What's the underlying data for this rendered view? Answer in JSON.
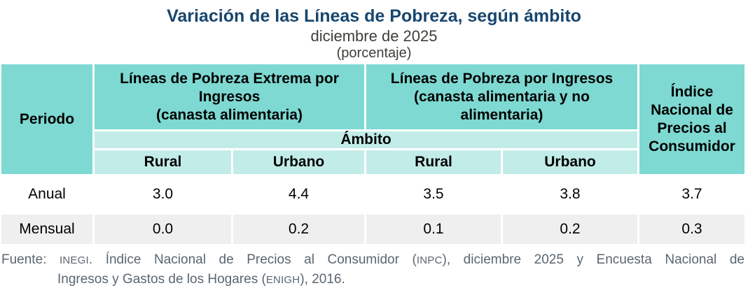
{
  "page": {
    "title": "Variación de las Líneas de Pobreza, según ámbito",
    "subtitle": "diciembre de 2025",
    "unit_note": "(porcentaje)"
  },
  "table": {
    "period_header": "Periodo",
    "groups": [
      {
        "line1": "Líneas de Pobreza Extrema por Ingresos",
        "line2": "(canasta alimentaria)"
      },
      {
        "line1": "Líneas de Pobreza por Ingresos",
        "line2": "(canasta alimentaria y no alimentaria)"
      }
    ],
    "inpc_header": "Índice Nacional de Precios al Consumidor",
    "ambito_header": "Ámbito",
    "scope_headers": [
      "Rural",
      "Urbano",
      "Rural",
      "Urbano"
    ],
    "rows": [
      {
        "label": "Anual",
        "values": [
          "3.0",
          "4.4",
          "3.5",
          "3.8",
          "3.7"
        ]
      },
      {
        "label": "Mensual",
        "values": [
          "0.0",
          "0.2",
          "0.1",
          "0.2",
          "0.3"
        ]
      }
    ]
  },
  "footer": {
    "label": "Fuente: ",
    "acronym_inegi": "INEGI",
    "line1_mid": ". Índice Nacional de Precios al Consumidor (",
    "acronym_inpc": "INPC",
    "line1_end": "), diciembre 2025 y Encuesta Nacional de",
    "line2_start": "Ingresos y Gastos de los Hogares (",
    "acronym_enigh": "ENIGH",
    "line2_end": "), 2016."
  },
  "colors": {
    "header_teal": "#7ED9D2",
    "subheader_teal": "#C2ECE8",
    "zebra_gray": "#EFEFEF",
    "title_blue": "#17466E",
    "footer_gray": "#5A6670"
  },
  "chart_data": {
    "type": "table",
    "title": "Variación de las Líneas de Pobreza, según ámbito",
    "subtitle": "diciembre de 2025",
    "unit": "porcentaje",
    "column_groups": [
      "Líneas de Pobreza Extrema por Ingresos (canasta alimentaria) — Ámbito",
      "Líneas de Pobreza por Ingresos (canasta alimentaria y no alimentaria) — Ámbito",
      "Índice Nacional de Precios al Consumidor"
    ],
    "columns": [
      "Periodo",
      "LPEI Rural",
      "LPEI Urbano",
      "LPI Rural",
      "LPI Urbano",
      "INPC"
    ],
    "rows": [
      [
        "Anual",
        3.0,
        4.4,
        3.5,
        3.8,
        3.7
      ],
      [
        "Mensual",
        0.0,
        0.2,
        0.1,
        0.2,
        0.3
      ]
    ],
    "source": "Fuente: INEGI. Índice Nacional de Precios al Consumidor (INPC), diciembre 2025 y Encuesta Nacional de Ingresos y Gastos de los Hogares (ENIGH), 2016."
  }
}
